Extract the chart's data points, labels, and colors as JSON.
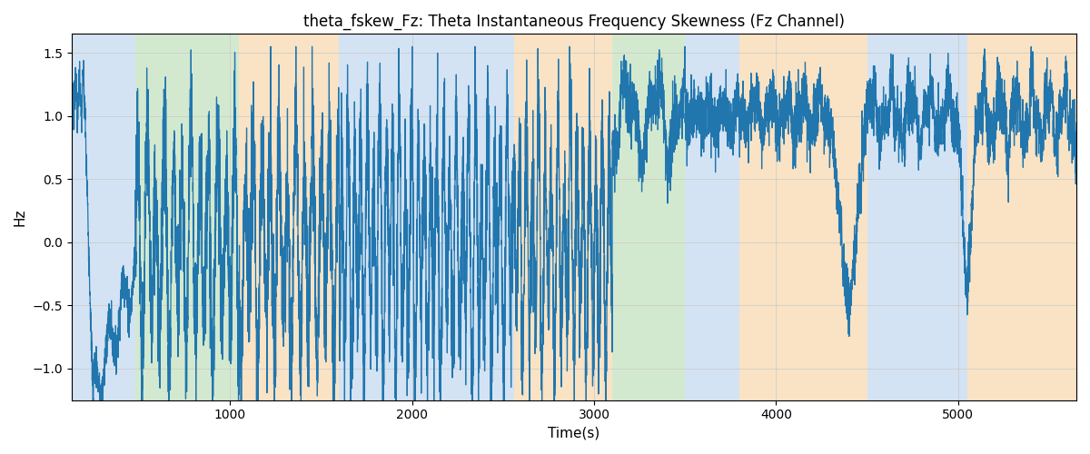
{
  "title": "theta_fskew_Fz: Theta Instantaneous Frequency Skewness (Fz Channel)",
  "xlabel": "Time(s)",
  "ylabel": "Hz",
  "xlim": [
    130,
    5650
  ],
  "ylim": [
    -1.25,
    1.65
  ],
  "line_color": "#2176ae",
  "line_width": 0.9,
  "bg_color": "white",
  "grid_color": "#c8c8c8",
  "regions": [
    {
      "start": 130,
      "end": 480,
      "color": "#a8c8e8",
      "alpha": 0.5
    },
    {
      "start": 480,
      "end": 1050,
      "color": "#a8d4a0",
      "alpha": 0.5
    },
    {
      "start": 1050,
      "end": 1600,
      "color": "#f5c98a",
      "alpha": 0.5
    },
    {
      "start": 1600,
      "end": 2100,
      "color": "#a8c8e8",
      "alpha": 0.5
    },
    {
      "start": 2100,
      "end": 2560,
      "color": "#a8c8e8",
      "alpha": 0.5
    },
    {
      "start": 2560,
      "end": 3100,
      "color": "#f5c98a",
      "alpha": 0.5
    },
    {
      "start": 3100,
      "end": 3500,
      "color": "#a8d4a0",
      "alpha": 0.5
    },
    {
      "start": 3500,
      "end": 3800,
      "color": "#a8c8e8",
      "alpha": 0.5
    },
    {
      "start": 3800,
      "end": 4500,
      "color": "#f5c98a",
      "alpha": 0.5
    },
    {
      "start": 4500,
      "end": 5050,
      "color": "#a8c8e8",
      "alpha": 0.5
    },
    {
      "start": 5050,
      "end": 5650,
      "color": "#f5c98a",
      "alpha": 0.5
    }
  ],
  "yticks": [
    -1.0,
    -0.5,
    0.0,
    0.5,
    1.0,
    1.5
  ],
  "xticks": [
    1000,
    2000,
    3000,
    4000,
    5000
  ]
}
